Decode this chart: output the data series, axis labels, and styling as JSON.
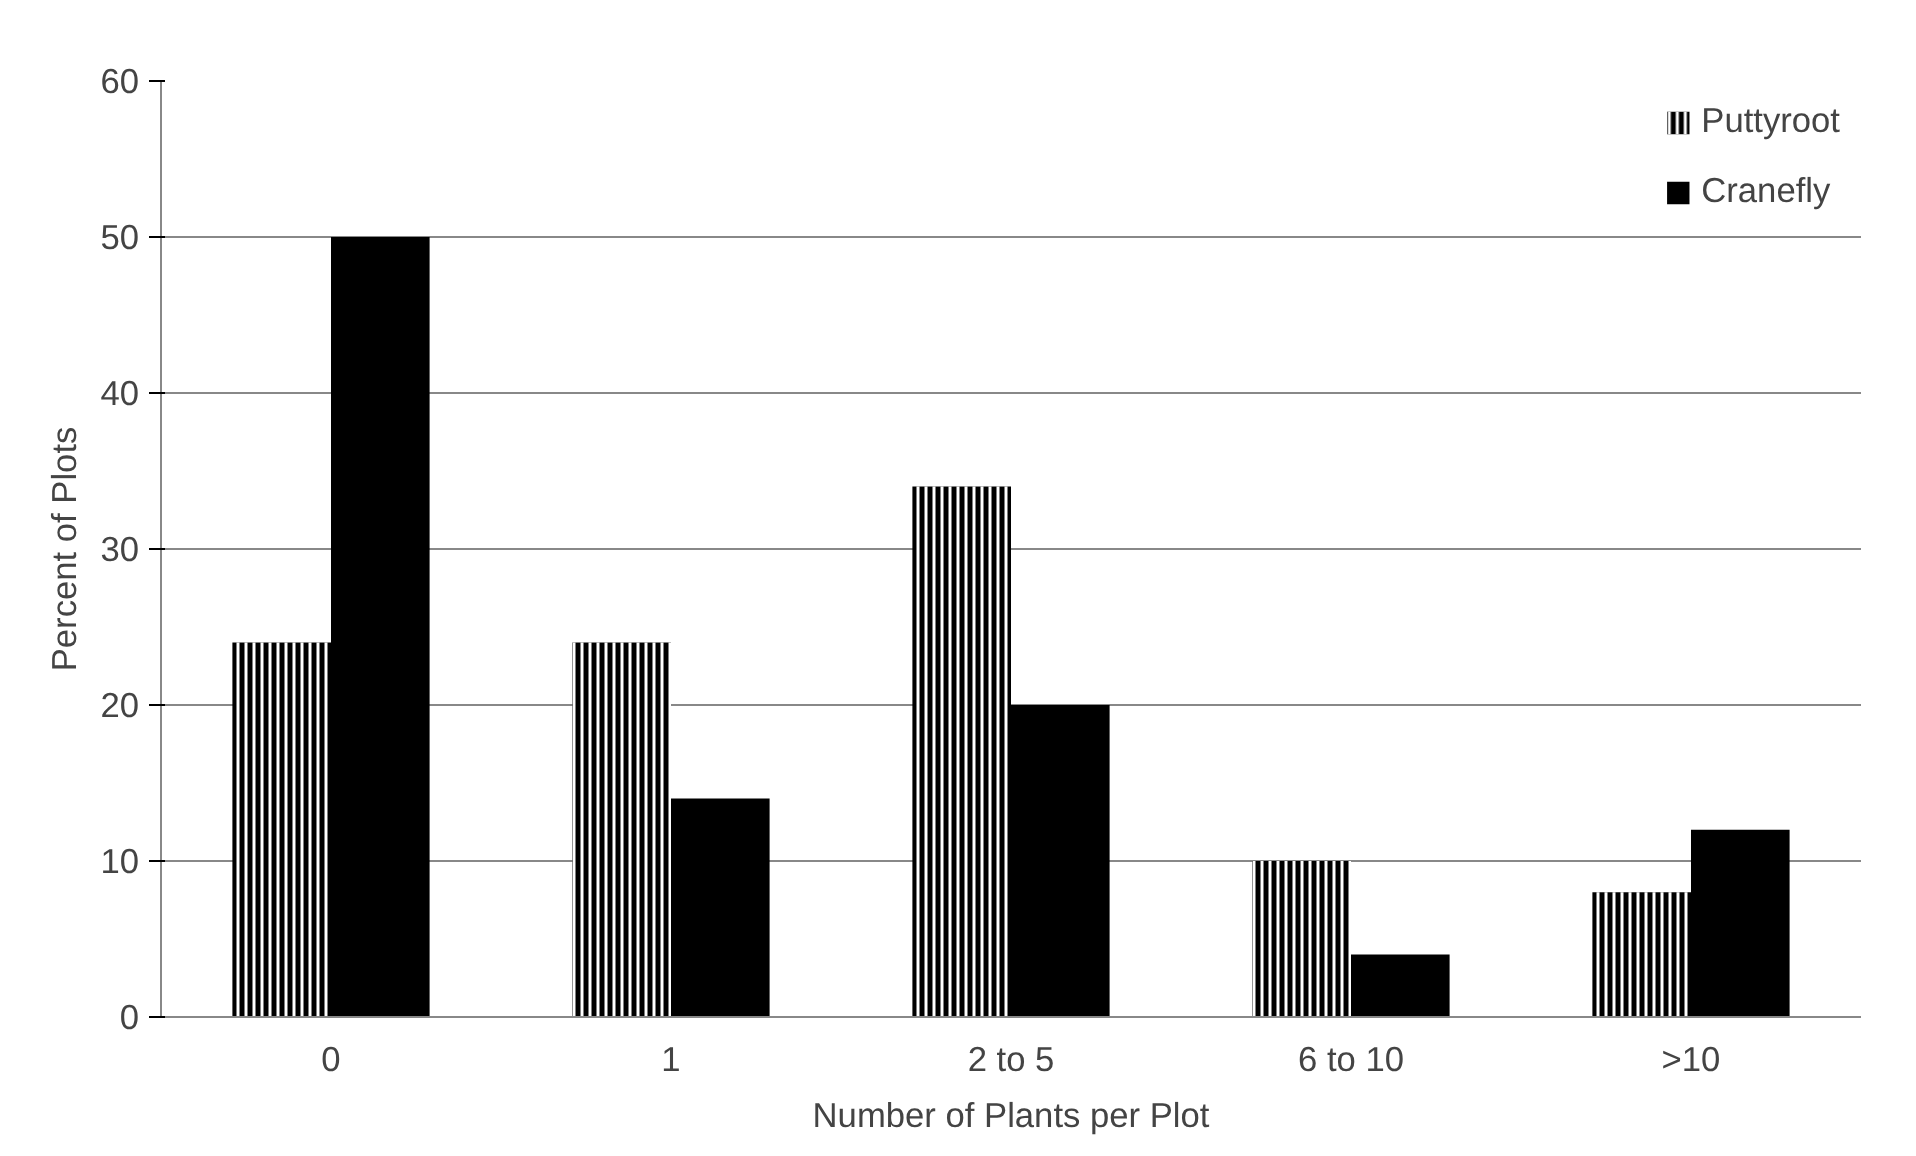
{
  "chart_data": {
    "type": "bar",
    "xlabel": "Number of Plants per Plot",
    "ylabel": "Percent of Plots",
    "categories": [
      "0",
      "1",
      "2 to 5",
      "6 to 10",
      ">10"
    ],
    "series": [
      {
        "name": "Puttyroot",
        "color": "#000000",
        "values": [
          24,
          24,
          34,
          10,
          8
        ]
      },
      {
        "name": "Cranefly",
        "color": "#000000",
        "values": [
          50,
          14,
          20,
          4,
          12
        ]
      }
    ],
    "ylim": [
      0,
      60
    ],
    "yticks": [
      0,
      10,
      20,
      30,
      40,
      50,
      60
    ],
    "grid": "y",
    "legend": "top right"
  }
}
